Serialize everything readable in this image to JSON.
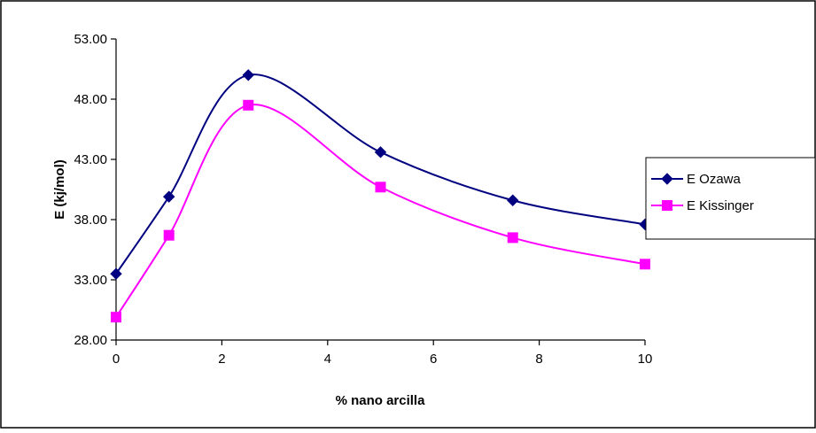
{
  "chart_data": {
    "type": "line",
    "title": "",
    "xlabel": "% nano arcilla",
    "ylabel": "E (kj/mol)",
    "xlim": [
      0,
      10
    ],
    "ylim": [
      28.0,
      53.0
    ],
    "x_ticks": [
      0,
      2,
      4,
      6,
      8,
      10
    ],
    "x_tick_labels": [
      "0",
      "2",
      "4",
      "6",
      "8",
      "10"
    ],
    "y_ticks": [
      28.0,
      33.0,
      38.0,
      43.0,
      48.0,
      53.0
    ],
    "y_tick_labels": [
      "28.00",
      "33.00",
      "38.00",
      "43.00",
      "48.00",
      "53.00"
    ],
    "grid": false,
    "smooth": true,
    "legend_position": "right",
    "series": [
      {
        "name": "E Ozawa",
        "color": "#000080",
        "marker": "diamond",
        "x": [
          0,
          1,
          2.5,
          5,
          7.5,
          10
        ],
        "y": [
          33.5,
          39.9,
          50.0,
          43.6,
          39.6,
          37.6
        ]
      },
      {
        "name": "E Kissinger",
        "color": "#FF00FF",
        "marker": "square",
        "x": [
          0,
          1,
          2.5,
          5,
          7.5,
          10
        ],
        "y": [
          29.9,
          36.7,
          47.5,
          40.7,
          36.5,
          34.3
        ]
      }
    ]
  }
}
